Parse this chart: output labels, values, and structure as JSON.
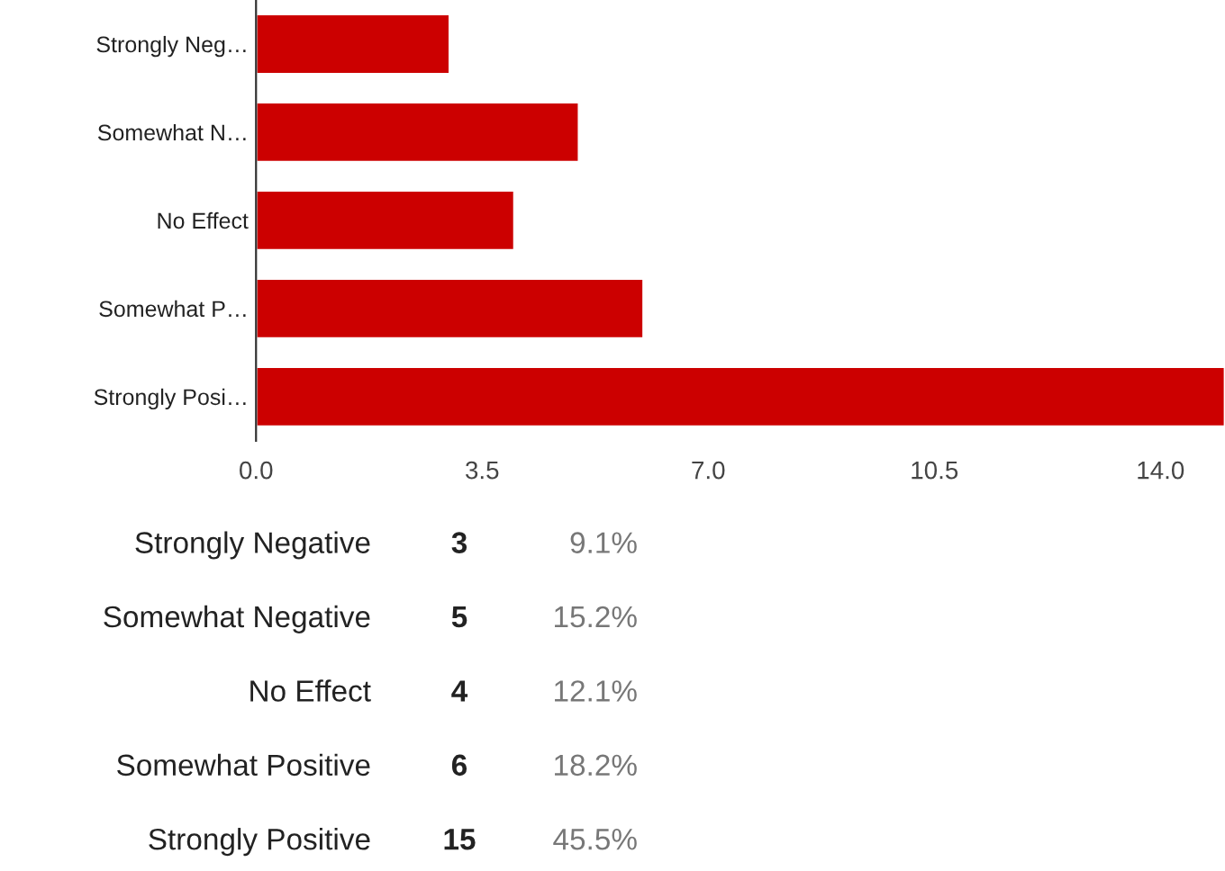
{
  "chart_data": {
    "type": "bar",
    "orientation": "horizontal",
    "categories": [
      "Strongly Neg…",
      "Somewhat N…",
      "No Effect",
      "Somewhat P…",
      "Strongly Posi…"
    ],
    "values": [
      3,
      5,
      4,
      6,
      15
    ],
    "color": "#cc0000",
    "xlim": [
      0,
      15
    ],
    "xticks": [
      {
        "value": 0,
        "label": "0.0"
      },
      {
        "value": 3.5,
        "label": "3.5"
      },
      {
        "value": 7,
        "label": "7.0"
      },
      {
        "value": 10.5,
        "label": "10.5"
      },
      {
        "value": 14,
        "label": "14.0"
      }
    ],
    "grid": false,
    "annotations": [
      "Strongly Negative",
      "3",
      "9.1%",
      "Somewhat Negative",
      "5",
      "15.2%",
      "No Effect",
      "4",
      "12.1%",
      "Somewhat Positive",
      "6",
      "18.2%",
      "Strongly Positive",
      "15",
      "45.5%"
    ]
  }
}
